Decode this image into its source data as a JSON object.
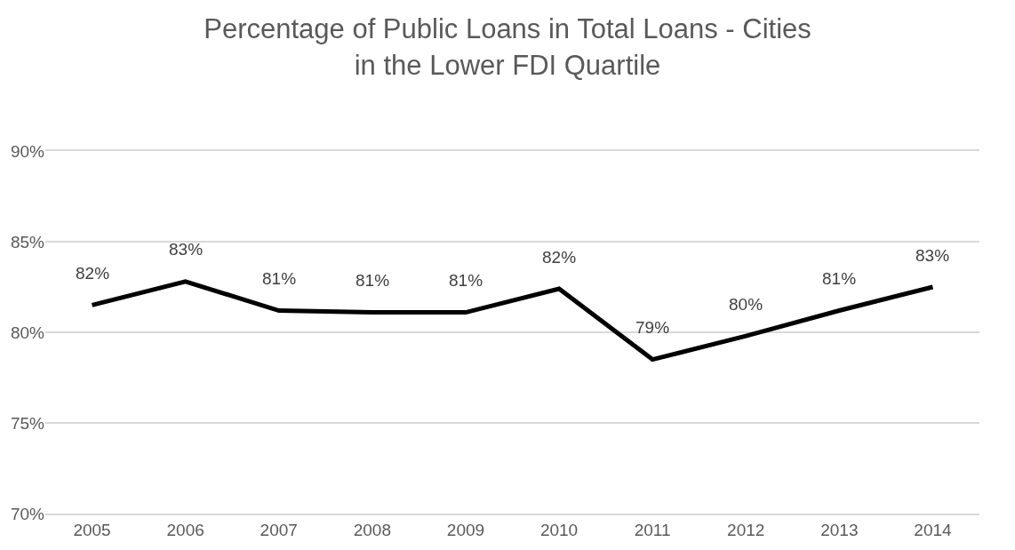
{
  "chart_data": {
    "type": "line",
    "title": "Percentage of Public Loans in Total Loans - Cities in the Lower FDI Quartile",
    "categories": [
      "2005",
      "2006",
      "2007",
      "2008",
      "2009",
      "2010",
      "2011",
      "2012",
      "2013",
      "2014"
    ],
    "series": [
      {
        "color": "#000000",
        "values": [
          81.5,
          82.8,
          81.2,
          81.1,
          81.1,
          82.4,
          78.5,
          79.8,
          81.2,
          82.5
        ],
        "value_labels": [
          "82%",
          "83%",
          "81%",
          "81%",
          "81%",
          "82%",
          "79%",
          "80%",
          "81%",
          "83%"
        ]
      }
    ],
    "ylim": [
      70,
      90
    ],
    "yticks": [
      {
        "value": 70,
        "label": "70%"
      },
      {
        "value": 75,
        "label": "75%"
      },
      {
        "value": 80,
        "label": "80%"
      },
      {
        "value": 85,
        "label": "85%"
      },
      {
        "value": 90,
        "label": "90%"
      }
    ],
    "grid": "y",
    "marker": "none",
    "line_style": "solid"
  }
}
